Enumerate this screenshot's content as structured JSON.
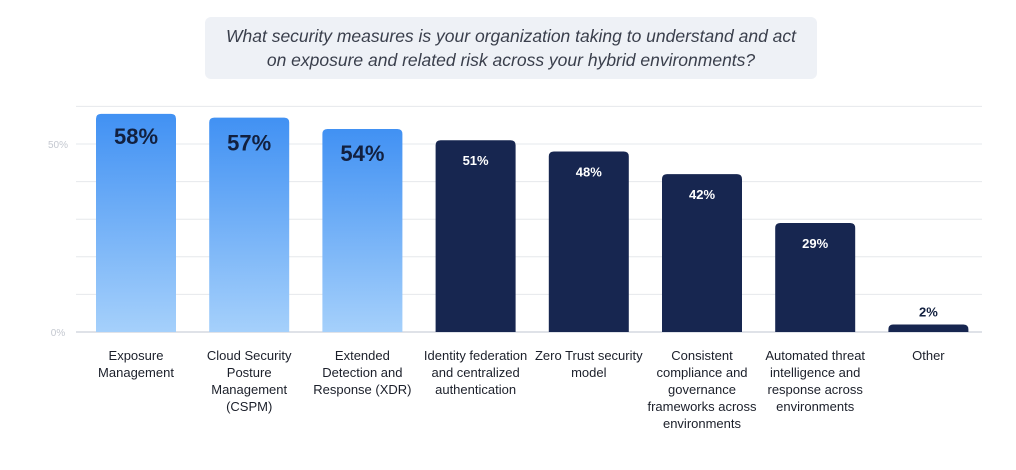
{
  "chart_data": {
    "type": "bar",
    "title": "What security measures is your organization taking to understand and act on exposure and related risk across your hybrid environments?",
    "categories": [
      "Exposure Management",
      "Cloud Security Posture Management (CSPM)",
      "Extended Detection and Response (XDR)",
      "Identity federation and centralized authentication",
      "Zero Trust security model",
      "Consistent compliance and governance frameworks across environments",
      "Automated threat intelligence and response across environments",
      "Other"
    ],
    "values": [
      58,
      57,
      54,
      51,
      48,
      42,
      29,
      2
    ],
    "data_labels": [
      "58%",
      "57%",
      "54%",
      "51%",
      "48%",
      "42%",
      "29%",
      "2%"
    ],
    "ylim": [
      0,
      60
    ],
    "yticks": [
      {
        "value": 0,
        "label": "0%"
      },
      {
        "value": 50,
        "label": "50%"
      }
    ],
    "grid": true,
    "highlighted_count": 3,
    "colors": {
      "highlight_top": "#4191f3",
      "highlight_bottom": "#a5d0fb",
      "default": "#172650",
      "label_on_light": "#12203f",
      "label_on_dark": "#ffffff",
      "grid": "#e6e8ec"
    }
  }
}
